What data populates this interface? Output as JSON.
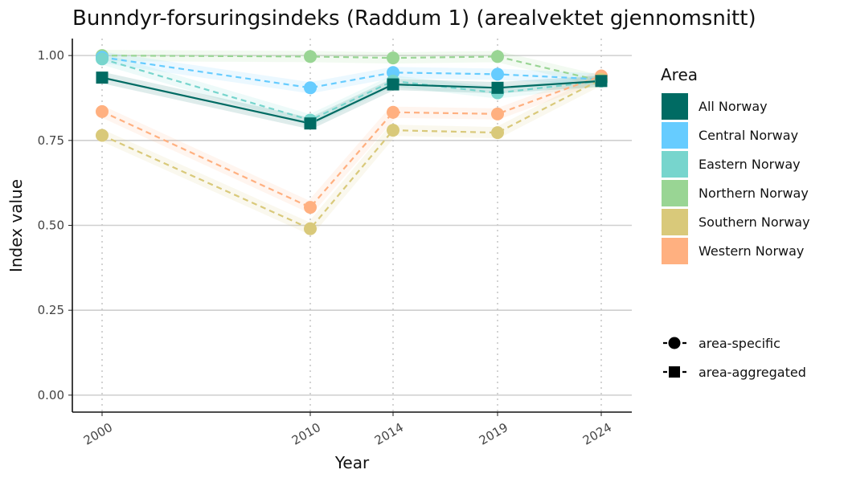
{
  "chart_data": {
    "type": "line",
    "title": "Bunndyr-forsuringsindeks (Raddum 1) (arealvektet gjennomsnitt)",
    "xlabel": "Year",
    "ylabel": "Index value",
    "x": [
      2000,
      2010,
      2014,
      2019,
      2024
    ],
    "x_tick_labels": [
      "2000",
      "2010",
      "2014",
      "2019",
      "2024"
    ],
    "y_ticks": [
      0.0,
      0.25,
      0.5,
      0.75,
      1.0
    ],
    "y_tick_labels": [
      "0.00",
      "0.25",
      "0.50",
      "0.75",
      "1.00"
    ],
    "ylim": [
      -0.05,
      1.05
    ],
    "grid": "horizontal",
    "legend_position": "right",
    "legend_title": "Area",
    "series": [
      {
        "name": "All Norway",
        "color": "#006b63",
        "shape": "area-aggregated",
        "values": [
          0.935,
          0.8,
          0.915,
          0.905,
          0.925
        ]
      },
      {
        "name": "Central Norway",
        "color": "#66ccff",
        "shape": "area-specific",
        "values": [
          0.995,
          0.905,
          0.95,
          0.945,
          0.93
        ]
      },
      {
        "name": "Eastern Norway",
        "color": "#77d5cd",
        "shape": "area-specific",
        "values": [
          0.99,
          0.81,
          0.925,
          0.89,
          0.925
        ]
      },
      {
        "name": "Northern Norway",
        "color": "#99d594",
        "shape": "area-specific",
        "values": [
          1.0,
          0.997,
          0.993,
          0.997,
          0.925
        ]
      },
      {
        "name": "Southern Norway",
        "color": "#d9c97a",
        "shape": "area-specific",
        "values": [
          0.765,
          0.49,
          0.78,
          0.773,
          0.93
        ]
      },
      {
        "name": "Western Norway",
        "color": "#ffb080",
        "shape": "area-specific",
        "values": [
          0.835,
          0.553,
          0.833,
          0.828,
          0.94
        ]
      }
    ],
    "shape_legend": [
      {
        "label": "area-specific",
        "marker": "circle"
      },
      {
        "label": "area-aggregated",
        "marker": "square"
      }
    ]
  }
}
